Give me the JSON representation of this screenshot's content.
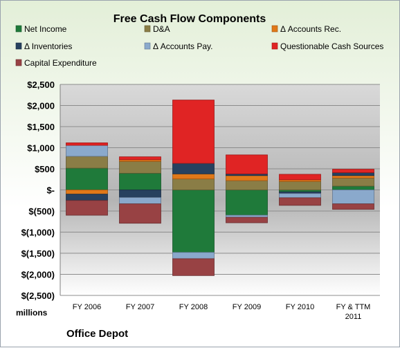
{
  "colors": {
    "net_income": "#1f7a3a",
    "dna": "#8a7d46",
    "accounts_rec": "#e07818",
    "inventories": "#27415f",
    "accounts_pay": "#8aa9cc",
    "questionable": "#e02424",
    "capex": "#984244"
  },
  "footer": {
    "company": "Office Depot"
  },
  "chart_data": {
    "type": "bar",
    "stacked": true,
    "title": "Free Cash Flow Components",
    "ylabel": "millions",
    "categories": [
      "FY 2006",
      "FY 2007",
      "FY 2008",
      "FY 2009",
      "FY 2010",
      "FY & TTM\n2011"
    ],
    "yticks": [
      "$2,500",
      "$2,000",
      "$1,500",
      "$1,000",
      "$500",
      "$-",
      "$(500)",
      "$(1,000)",
      "$(1,500)",
      "$(2,000)",
      "$(2,500)"
    ],
    "ylim": [
      -2500,
      2500
    ],
    "grid": true,
    "legend": "top",
    "series": [
      {
        "name": "Net Income",
        "key": "net_income",
        "values": [
          516,
          395,
          -1480,
          -599,
          -46,
          90
        ]
      },
      {
        "name": "D&A",
        "key": "dna",
        "values": [
          280,
          280,
          260,
          220,
          200,
          190
        ]
      },
      {
        "name": "Δ Accounts Rec.",
        "key": "accounts_rec",
        "values": [
          -100,
          40,
          120,
          120,
          40,
          60
        ]
      },
      {
        "name": "Δ Inventories",
        "key": "inventories",
        "values": [
          -150,
          -180,
          250,
          40,
          -40,
          70
        ]
      },
      {
        "name": "Δ Accounts Pay.",
        "key": "accounts_pay",
        "values": [
          260,
          -150,
          -150,
          -50,
          -100,
          -330
        ]
      },
      {
        "name": "Questionable Cash Sources",
        "key": "questionable",
        "values": [
          60,
          70,
          1500,
          450,
          130,
          80
        ]
      },
      {
        "name": "Capital Expenditure",
        "key": "capex",
        "values": [
          -350,
          -460,
          -400,
          -130,
          -180,
          -130
        ]
      }
    ]
  }
}
